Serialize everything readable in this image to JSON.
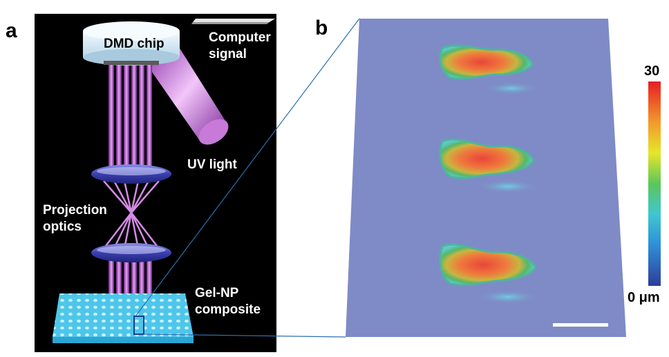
{
  "panel_a": {
    "letter": "a",
    "labels": {
      "dmd_chip": "DMD chip",
      "computer_signal_line1": "Computer",
      "computer_signal_line2": "signal",
      "uv_light": "UV light",
      "projection_optics_line1": "Projection",
      "projection_optics_line2": "optics",
      "gel_np_line1": "Gel-NP",
      "gel_np_line2": "composite"
    }
  },
  "panel_b": {
    "letter": "b",
    "colorbar": {
      "max_label": "30",
      "min_label": "0 μm"
    },
    "colors": {
      "background": "#7f8bc6",
      "scale_bar": "#ffffff"
    }
  }
}
